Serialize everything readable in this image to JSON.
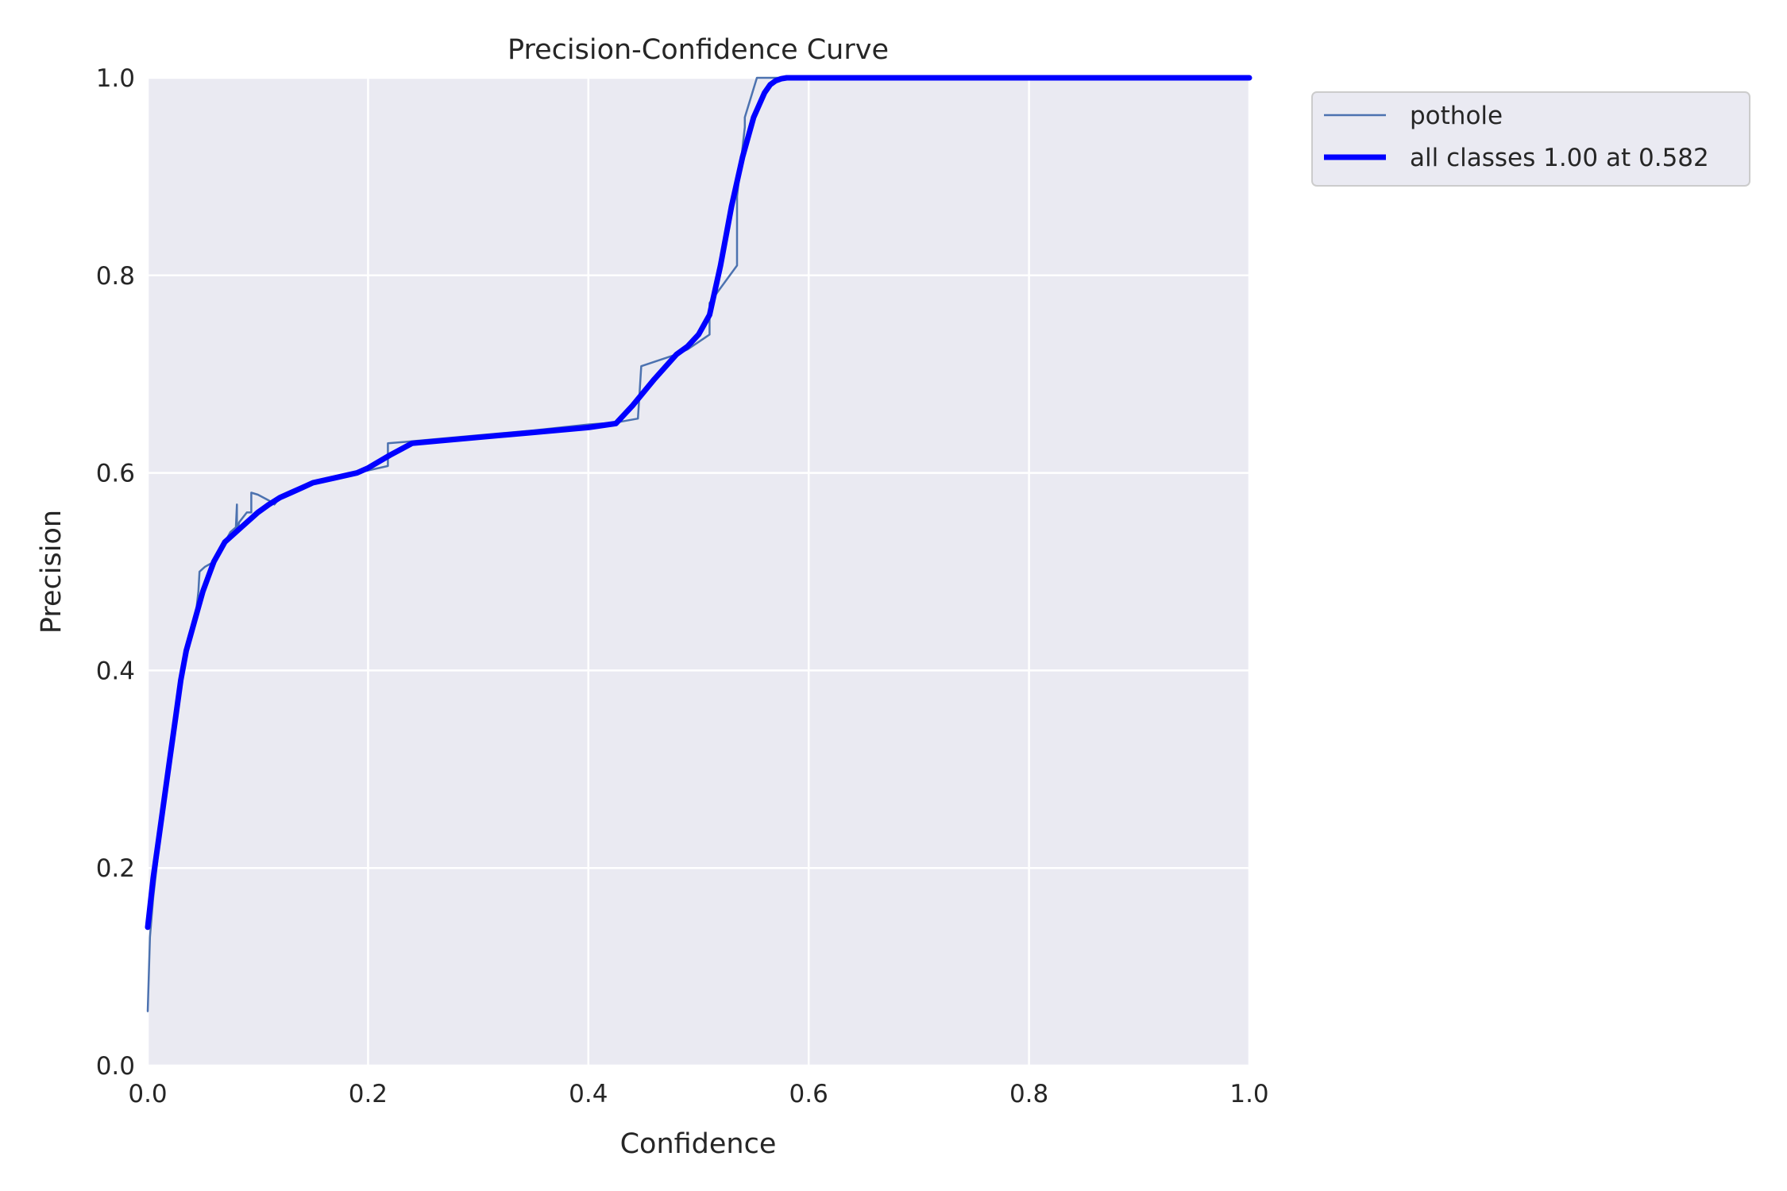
{
  "chart_data": {
    "type": "line",
    "title": "Precision-Confidence Curve",
    "xlabel": "Confidence",
    "ylabel": "Precision",
    "xlim": [
      0.0,
      1.0
    ],
    "ylim": [
      0.0,
      1.0
    ],
    "x_ticks": [
      "0.0",
      "0.2",
      "0.4",
      "0.6",
      "0.8",
      "1.0"
    ],
    "y_ticks": [
      "0.0",
      "0.2",
      "0.4",
      "0.6",
      "0.8",
      "1.0"
    ],
    "grid": true,
    "legend_position": "outside-top-right",
    "background_color": "#eaeaf2",
    "series": [
      {
        "name": "pothole",
        "color": "#4c72b0",
        "style": "thin",
        "x": [
          0.0,
          0.002,
          0.005,
          0.008,
          0.012,
          0.016,
          0.018,
          0.019,
          0.022,
          0.025,
          0.028,
          0.032,
          0.036,
          0.04,
          0.044,
          0.046,
          0.047,
          0.052,
          0.06,
          0.065,
          0.07,
          0.075,
          0.08,
          0.081,
          0.081,
          0.083,
          0.09,
          0.094,
          0.094,
          0.1,
          0.11,
          0.115,
          0.12,
          0.13,
          0.14,
          0.15,
          0.17,
          0.19,
          0.21,
          0.218,
          0.218,
          0.24,
          0.3,
          0.35,
          0.4,
          0.425,
          0.445,
          0.448,
          0.48,
          0.49,
          0.51,
          0.51,
          0.535,
          0.535,
          0.542,
          0.542,
          0.553,
          0.56,
          0.6,
          0.8,
          1.0
        ],
        "y": [
          0.055,
          0.13,
          0.17,
          0.2,
          0.24,
          0.27,
          0.3,
          0.31,
          0.33,
          0.36,
          0.37,
          0.4,
          0.42,
          0.44,
          0.46,
          0.48,
          0.5,
          0.505,
          0.51,
          0.52,
          0.53,
          0.54,
          0.545,
          0.568,
          0.54,
          0.55,
          0.56,
          0.56,
          0.58,
          0.578,
          0.572,
          0.568,
          0.575,
          0.58,
          0.585,
          0.59,
          0.595,
          0.6,
          0.605,
          0.607,
          0.63,
          0.632,
          0.638,
          0.643,
          0.649,
          0.651,
          0.655,
          0.708,
          0.72,
          0.725,
          0.74,
          0.772,
          0.81,
          0.88,
          0.95,
          0.96,
          1.0,
          1.0,
          1.0,
          1.0,
          1.0
        ]
      },
      {
        "name": "all classes 1.00 at 0.582",
        "color": "#0000ff",
        "style": "thick",
        "x": [
          0.0,
          0.005,
          0.01,
          0.015,
          0.02,
          0.025,
          0.03,
          0.035,
          0.04,
          0.045,
          0.05,
          0.055,
          0.06,
          0.07,
          0.08,
          0.09,
          0.1,
          0.11,
          0.12,
          0.13,
          0.14,
          0.15,
          0.17,
          0.19,
          0.2,
          0.22,
          0.24,
          0.3,
          0.35,
          0.4,
          0.425,
          0.44,
          0.46,
          0.48,
          0.49,
          0.5,
          0.51,
          0.52,
          0.53,
          0.54,
          0.55,
          0.56,
          0.565,
          0.57,
          0.575,
          0.58,
          0.6,
          0.8,
          1.0
        ],
        "y": [
          0.14,
          0.19,
          0.23,
          0.27,
          0.31,
          0.35,
          0.39,
          0.42,
          0.44,
          0.46,
          0.48,
          0.495,
          0.51,
          0.53,
          0.54,
          0.55,
          0.56,
          0.568,
          0.575,
          0.58,
          0.585,
          0.59,
          0.595,
          0.6,
          0.605,
          0.618,
          0.63,
          0.636,
          0.641,
          0.646,
          0.65,
          0.668,
          0.695,
          0.72,
          0.728,
          0.74,
          0.76,
          0.81,
          0.87,
          0.92,
          0.96,
          0.985,
          0.993,
          0.997,
          0.999,
          1.0,
          1.0,
          1.0,
          1.0
        ]
      }
    ]
  }
}
